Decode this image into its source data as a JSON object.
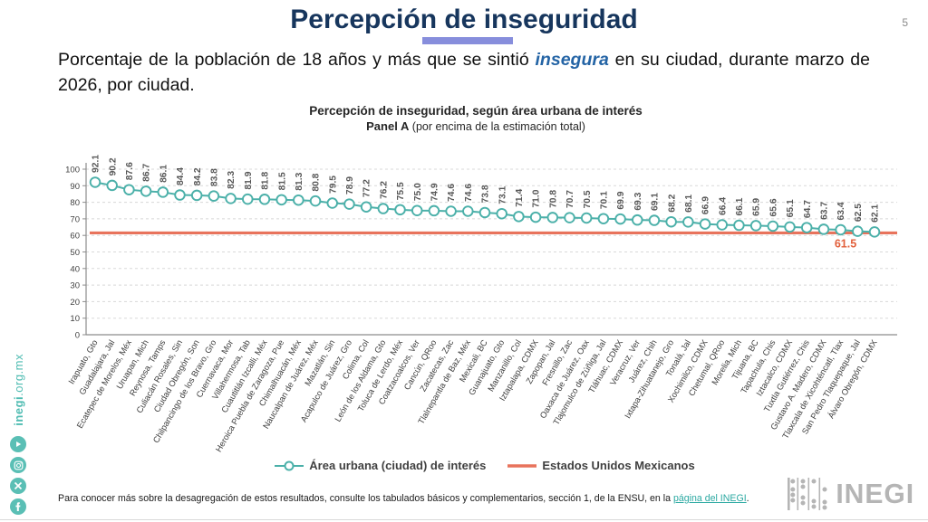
{
  "header": {
    "title": "Percepción de inseguridad",
    "page_number": "5",
    "accent_color": "#878EDC",
    "title_color": "#17365D"
  },
  "subtitle": {
    "pre": "Porcentaje de la población de 18 años y más que se sintió ",
    "em": "insegura",
    "post": " en su ciudad, durante marzo de 2026, por ciudad."
  },
  "chart_data": {
    "type": "line",
    "title": "Percepción de inseguridad, según área urbana de interés",
    "panel_bold": "Panel A",
    "panel_rest": " (por encima de la estimación total)",
    "ylim": [
      0,
      100
    ],
    "ytick_step": 10,
    "grid": "dashed-horizontal",
    "legend_position": "bottom",
    "categories": [
      "Irapuato, Gto",
      "Guadalajara, Jal",
      "Ecatepec de Morelos, Méx",
      "Uruapan, Mich",
      "Reynosa, Tamps",
      "Culiacán Rosales, Sin",
      "Ciudad Obregón, Son",
      "Chilpancingo de los Bravo, Gro",
      "Cuernavaca, Mor",
      "Villahermosa, Tab",
      "Cuautitlán Izcalli, Méx",
      "Heroica Puebla de Zaragoza, Pue",
      "Chimalhuacán, Méx",
      "Naucalpan de Juárez, Méx",
      "Mazatlán, Sin",
      "Acapulco de Juárez, Gro",
      "Colima, Col",
      "León de los Aldama, Gto",
      "Toluca de Lerdo, Méx",
      "Coatzacoalcos, Ver",
      "Cancún, QRoo",
      "Zacatecas, Zac",
      "Tlalnepantla de Baz, Méx",
      "Mexicali, BC",
      "Guanajuato, Gto",
      "Manzanillo, Col",
      "Iztapalapa, CDMX",
      "Zapopan, Jal",
      "Fresnillo, Zac",
      "Oaxaca de Juárez, Oax",
      "Tlajomulco de Zúñiga, Jal",
      "Tláhuac, CDMX",
      "Veracruz, Ver",
      "Juárez, Chih",
      "Ixtapa-Zihuatanejo, Gro",
      "Tonalá, Jal",
      "Xochimilco, CDMX",
      "Chetumal, QRoo",
      "Morelia, Mich",
      "Tijuana, BC",
      "Tapachula, Chis",
      "Iztacalco, CDMX",
      "Tuxtla Gutiérrez, Chis",
      "Gustavo A. Madero, CDMX",
      "Tlaxcala de Xicohténcatl, Tlax",
      "San Pedro Tlaquepaque, Jal",
      "Álvaro Obregón, CDMX"
    ],
    "series": [
      {
        "name": "Área urbana (ciudad) de interés",
        "color": "#4BB0A9",
        "marker": "open-circle",
        "values": [
          92.1,
          90.2,
          87.6,
          86.7,
          86.1,
          84.4,
          84.2,
          83.8,
          82.3,
          81.9,
          81.8,
          81.5,
          81.3,
          80.8,
          79.5,
          78.9,
          77.2,
          76.2,
          75.5,
          75.0,
          74.9,
          74.6,
          74.6,
          73.8,
          73.1,
          71.4,
          71.0,
          70.8,
          70.7,
          70.5,
          70.1,
          69.9,
          69.3,
          69.1,
          68.2,
          68.1,
          66.9,
          66.4,
          66.1,
          65.9,
          65.6,
          65.1,
          64.7,
          63.7,
          63.4,
          62.5,
          62.1
        ]
      }
    ],
    "reference_line": {
      "name": "Estados Unidos Mexicanos",
      "value": 61.5,
      "label": "61.5",
      "color": "#E8735C",
      "label_color": "#E2603C"
    }
  },
  "footer": {
    "pre": "Para conocer más sobre la desagregación de estos resultados, consulte los tabulados básicos y complementarios, sección 1, de la ENSU, en la ",
    "link": "página del INEGI",
    "post": "."
  },
  "sidebar": {
    "site_bold": "inegi",
    "site_rest": ".org.mx",
    "icons": [
      "youtube-icon",
      "instagram-icon",
      "x-icon",
      "facebook-icon"
    ],
    "accent_color": "#5ABFB5"
  },
  "logo": {
    "text": "INEGI"
  }
}
